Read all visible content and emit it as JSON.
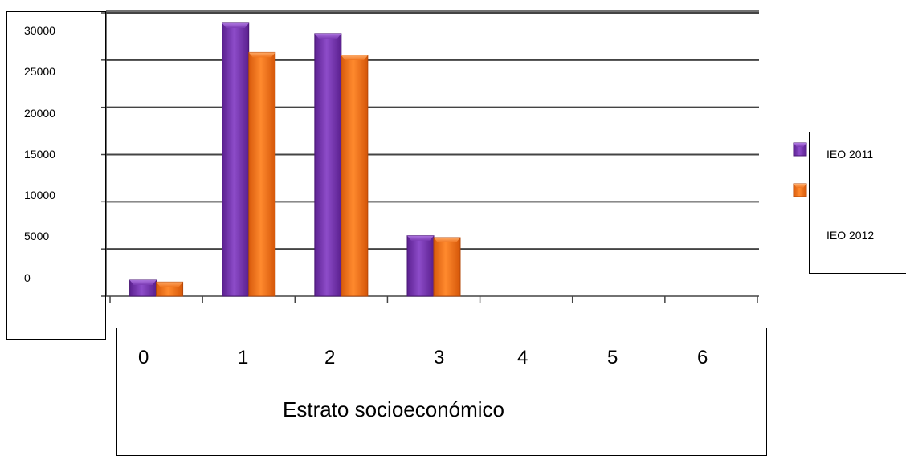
{
  "chart_data": {
    "type": "bar",
    "categories": [
      "0",
      "1",
      "2",
      "3",
      "4",
      "5",
      "6"
    ],
    "series": [
      {
        "name": "IEO 2011",
        "values": [
          1700,
          28900,
          27800,
          6400,
          0,
          0,
          0
        ],
        "color": "#7b3bb3"
      },
      {
        "name": "IEO 2012",
        "values": [
          1500,
          25800,
          25500,
          6200,
          0,
          0,
          0
        ],
        "color": "#f0731c"
      }
    ],
    "y_ticks": [
      "30000",
      "25000",
      "20000",
      "15000",
      "10000",
      "5000",
      "0"
    ],
    "xlabel": "Estrato socioeconómico",
    "ylim": [
      0,
      30000
    ],
    "grid": true,
    "legend": "right"
  }
}
